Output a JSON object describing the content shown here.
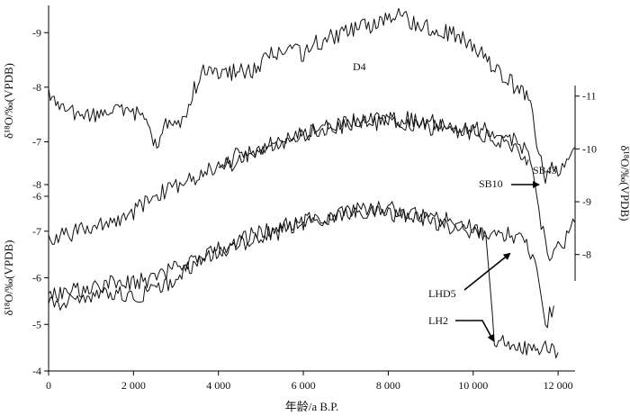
{
  "chart_data": {
    "type": "line",
    "x_axis": {
      "label": "年龄/a B.P.",
      "range": [
        0,
        12400
      ],
      "ticks": [
        0,
        2000,
        4000,
        6000,
        8000,
        10000,
        12000
      ],
      "tick_labels": [
        "0",
        "2 000",
        "4 000",
        "6 000",
        "8 000",
        "10 000",
        "12 000"
      ]
    },
    "y_axes": [
      {
        "id": "top",
        "label": "δ¹⁸O/‰(VPDB)",
        "range": [
          -6.0,
          -9.5
        ],
        "ticks": [
          -6,
          -7,
          -8,
          -9
        ],
        "tick_labels": [
          "-6",
          "-7",
          "-8",
          "-9"
        ]
      },
      {
        "id": "right",
        "label": "δ¹⁸O/‰(VPDB)",
        "range": [
          -7.5,
          -11.2
        ],
        "ticks": [
          -8,
          -9,
          -10,
          -11
        ],
        "tick_labels": [
          "-8",
          "-9",
          "-10",
          "-11"
        ]
      },
      {
        "id": "bottom",
        "label": "δ¹⁸O/‰(VPDB)",
        "range": [
          -4.0,
          -8.0
        ],
        "ticks": [
          -4,
          -5,
          -6,
          -7,
          -8
        ],
        "tick_labels": [
          "-4",
          "-5",
          "-6",
          "-7",
          "-8"
        ]
      }
    ],
    "series": [
      {
        "name": "D4",
        "axis": "top",
        "x": [
          0,
          300,
          700,
          1100,
          1500,
          1900,
          2300,
          2550,
          2800,
          3100,
          3300,
          3600,
          4000,
          4400,
          4800,
          5200,
          5600,
          6000,
          6300,
          6600,
          7000,
          7400,
          7800,
          8200,
          8600,
          9000,
          9400,
          9800,
          10200,
          10600,
          11000,
          11300,
          11500,
          11700,
          11850,
          12000,
          12200,
          12400
        ],
        "y": [
          -7.9,
          -7.6,
          -7.5,
          -7.45,
          -7.6,
          -7.5,
          -7.5,
          -6.8,
          -7.4,
          -7.3,
          -7.7,
          -8.3,
          -8.2,
          -8.3,
          -8.3,
          -8.6,
          -8.7,
          -8.6,
          -8.8,
          -8.9,
          -9.0,
          -9.1,
          -9.2,
          -9.3,
          -9.2,
          -9.1,
          -9.0,
          -8.9,
          -8.6,
          -8.3,
          -8.0,
          -7.8,
          -7.0,
          -6.3,
          -6.5,
          -6.5,
          -6.7,
          -6.9
        ]
      },
      {
        "name": "SB43",
        "axis": "right",
        "x": [
          0,
          500,
          1000,
          1500,
          2000,
          2500,
          3000,
          3500,
          4000,
          4500,
          5000,
          5500,
          6000,
          6500,
          7000,
          7500,
          8000,
          8500,
          9000,
          9500,
          10000,
          10500,
          11000,
          11200,
          11400,
          11600,
          11800,
          12000,
          12200,
          12400
        ],
        "y": [
          -8.3,
          -8.4,
          -8.5,
          -8.6,
          -8.8,
          -9.1,
          -9.3,
          -9.5,
          -9.7,
          -9.9,
          -10.0,
          -10.2,
          -10.3,
          -10.4,
          -10.5,
          -10.55,
          -10.6,
          -10.55,
          -10.5,
          -10.4,
          -10.4,
          -10.3,
          -10.2,
          -10.0,
          -9.6,
          -8.6,
          -8.0,
          -8.1,
          -8.3,
          -8.6
        ]
      },
      {
        "name": "SB10",
        "axis": "right",
        "x": [
          4000,
          4500,
          5000,
          5500,
          6000,
          6500,
          7000,
          7500,
          8000,
          8500,
          9000,
          9500,
          10000,
          10500,
          11000,
          11300
        ],
        "y": [
          -9.6,
          -9.8,
          -10.0,
          -10.1,
          -10.3,
          -10.4,
          -10.45,
          -10.5,
          -10.5,
          -10.5,
          -10.4,
          -10.4,
          -10.3,
          -10.2,
          -10.0,
          -9.8
        ]
      },
      {
        "name": "LHD5",
        "axis": "bottom",
        "x": [
          0,
          500,
          1000,
          1500,
          2000,
          2500,
          3000,
          3500,
          4000,
          4500,
          5000,
          5500,
          6000,
          6500,
          7000,
          7500,
          8000,
          8500,
          9000,
          9500,
          10000,
          10500,
          11000,
          11300,
          11500,
          11700,
          11800,
          11900
        ],
        "y": [
          -5.6,
          -5.7,
          -5.8,
          -5.9,
          -5.9,
          -6.0,
          -6.2,
          -6.4,
          -6.6,
          -6.8,
          -7.0,
          -7.1,
          -7.2,
          -7.3,
          -7.4,
          -7.4,
          -7.4,
          -7.3,
          -7.2,
          -7.1,
          -7.0,
          -6.95,
          -6.9,
          -6.7,
          -6.2,
          -5.0,
          -5.2,
          -5.4
        ]
      },
      {
        "name": "LH2",
        "axis": "bottom",
        "x": [
          0,
          500,
          1000,
          1500,
          2000,
          2500,
          3000,
          3500,
          4000,
          4500,
          5000,
          5500,
          6000,
          6500,
          7000,
          7500,
          8000,
          8500,
          9000,
          9500,
          10000,
          10300,
          10500,
          10700,
          11000,
          11300,
          11600,
          11800,
          12000
        ],
        "y": [
          -5.4,
          -5.5,
          -5.6,
          -5.7,
          -5.6,
          -5.7,
          -6.0,
          -6.3,
          -6.6,
          -6.7,
          -6.9,
          -7.0,
          -7.2,
          -7.3,
          -7.4,
          -7.5,
          -7.5,
          -7.4,
          -7.3,
          -7.2,
          -7.1,
          -6.9,
          -4.7,
          -4.6,
          -4.55,
          -4.5,
          -4.5,
          -4.45,
          -4.4
        ]
      }
    ],
    "annotations": [
      "D4",
      "SB43",
      "SB10",
      "LHD5",
      "LH2"
    ]
  }
}
